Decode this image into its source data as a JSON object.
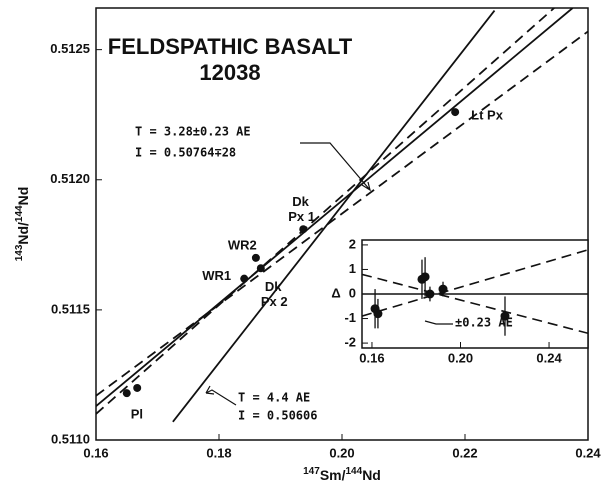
{
  "chart_data": [
    {
      "type": "scatter",
      "x_label": [
        "147",
        "Sm/",
        "144",
        "Nd"
      ],
      "y_label": [
        "143",
        "Nd/",
        "144",
        "Nd"
      ],
      "xlim": [
        0.16,
        0.24
      ],
      "ylim": [
        0.511,
        0.51266
      ],
      "xticks": [
        0.16,
        0.18,
        {
          "value": 0.2,
          "label": "0.20"
        },
        0.22,
        0.24
      ],
      "yticks": [
        {
          "value": 0.511,
          "label": "0.5110"
        },
        0.5115,
        {
          "value": 0.512,
          "label": "0.5120"
        },
        0.5125
      ],
      "annotations": [
        "FELDSPATHIC BASALT",
        "12038",
        "T = 3.28±0.23 AE",
        "I = 0.50764∓28",
        "T = 4.4 AE",
        "I = 0.50606"
      ],
      "series": [
        {
          "mode": "points",
          "color": "#111",
          "x": [
            0.165,
            0.1667,
            0.1841,
            0.186,
            0.1868,
            0.1937,
            0.2184
          ],
          "values": [
            0.51118,
            0.5112,
            0.51162,
            0.5117,
            0.51166,
            0.51181,
            0.51226
          ],
          "labels": [
            "Pl",
            null,
            "WR1",
            "WR2",
            "Dk Px 2",
            "Dk Px 1",
            "Lt Px"
          ]
        },
        {
          "mode": "solid",
          "color": "#111",
          "x": [
            0.1725,
            0.2248
          ],
          "values": [
            0.51107,
            0.51265
          ]
        },
        {
          "mode": "solid",
          "color": "#111",
          "x": [
            0.16,
            0.2375
          ],
          "values": [
            0.51113,
            0.51266
          ]
        },
        {
          "mode": "dashed",
          "color": "#111",
          "x": [
            0.16,
            0.24
          ],
          "values": [
            0.51117,
            0.51257
          ]
        },
        {
          "mode": "dashed",
          "color": "#111",
          "x": [
            0.16,
            0.2345
          ],
          "values": [
            0.5111,
            0.51266
          ]
        }
      ]
    },
    {
      "type": "scatter",
      "y_label": "Δ",
      "xlim": [
        0.1555,
        0.2576
      ],
      "ylim": [
        -2.2,
        2.2
      ],
      "xticks": [
        0.16,
        {
          "value": 0.2,
          "label": "0.20"
        },
        0.24
      ],
      "yticks": [
        2,
        1,
        0,
        -1,
        -2
      ],
      "annotations": [
        "±0.23 AE"
      ],
      "series": [
        {
          "mode": "points",
          "color": "#111",
          "x": [
            0.1614,
            0.1627,
            0.1826,
            0.184,
            0.1862,
            0.1921,
            0.2201
          ],
          "values": [
            -0.6,
            -0.8,
            0.6,
            0.7,
            0.0,
            0.2,
            -0.9
          ],
          "errors": [
            0.8,
            0.6,
            0.8,
            0.8,
            0.3,
            0.3,
            0.8
          ]
        },
        {
          "mode": "solid",
          "color": "#111",
          "x": [
            0.1555,
            0.2576
          ],
          "values": [
            0,
            0
          ]
        },
        {
          "mode": "dashed",
          "color": "#111",
          "x": [
            0.1555,
            0.2576
          ],
          "values": [
            -0.9,
            1.8
          ]
        },
        {
          "mode": "dashed",
          "color": "#111",
          "x": [
            0.1555,
            0.2576
          ],
          "values": [
            0.8,
            -1.6
          ]
        }
      ]
    }
  ]
}
